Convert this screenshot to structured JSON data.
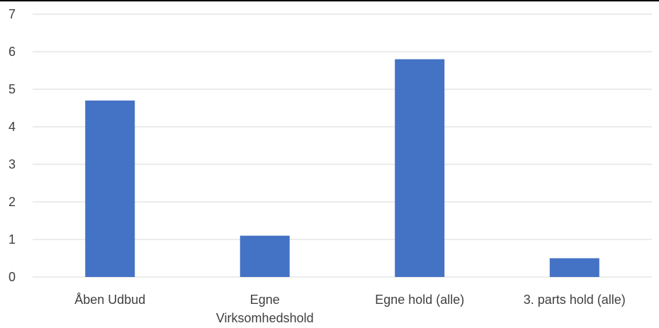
{
  "chart_data": {
    "type": "bar",
    "title": "",
    "xlabel": "",
    "ylabel": "",
    "categories": [
      [
        "Åben Udbud"
      ],
      [
        "Egne",
        "Virksomhedshold"
      ],
      [
        "Egne hold (alle)"
      ],
      [
        "3. parts hold (alle)"
      ]
    ],
    "series": [
      {
        "values": [
          4.7,
          1.1,
          5.8,
          0.5
        ],
        "color": "#4472c4"
      }
    ],
    "ylim": [
      0,
      7
    ],
    "yticks": [
      0,
      1,
      2,
      3,
      4,
      5,
      6,
      7
    ],
    "grid": true,
    "legend": "none"
  }
}
